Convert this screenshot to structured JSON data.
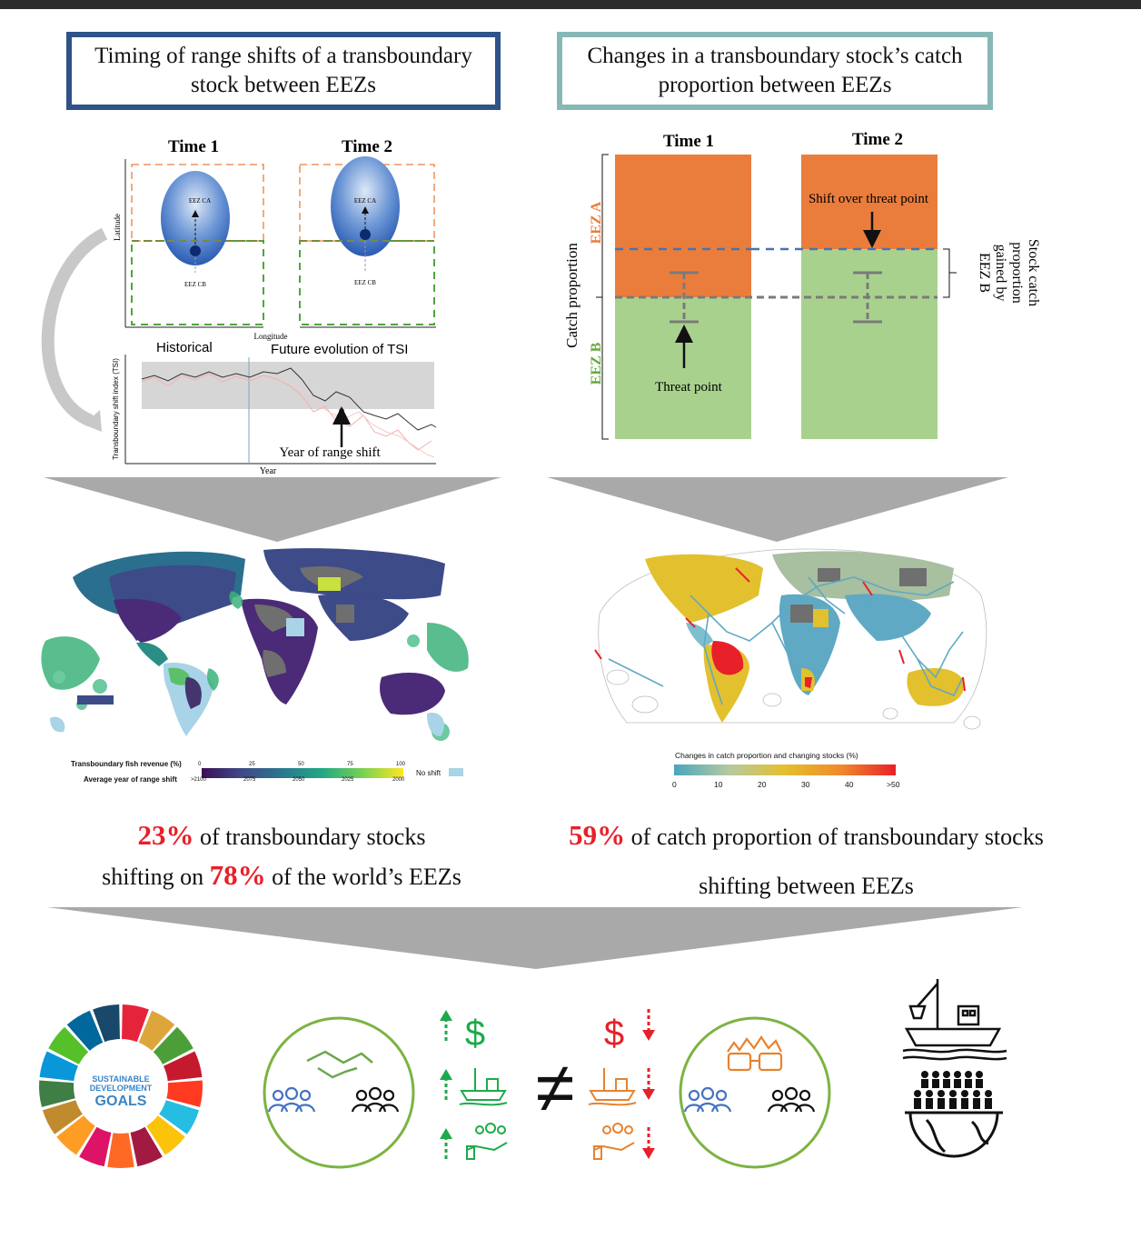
{
  "left_panel": {
    "title_line1": "Timing of range shifts of a transboundary",
    "title_line2": "stock between EEZs",
    "time1": "Time 1",
    "time2": "Time 2",
    "latitude": "Latitude",
    "longitude": "Longitude",
    "eez_ca": "EEZ CA",
    "eez_cb": "EEZ CB",
    "historical": "Historical",
    "future": "Future evolution of TSI",
    "tsi_axis": "Transboundary shift index (TSI)",
    "year_axis": "Year",
    "year_of_shift": "Year of range shift",
    "legend_revenue_label": "Transboundary fish revenue (%)",
    "legend_revenue_ticks": [
      "0",
      "25",
      "50",
      "75",
      "100"
    ],
    "legend_year_label": "Average year of range shift",
    "legend_year_ticks": [
      ">2100",
      "2075",
      "2050",
      "2025",
      "2000"
    ],
    "legend_no_shift": "No shift",
    "stat_pct1": "23%",
    "stat_text1": "of transboundary stocks",
    "stat_text2": "shifting on",
    "stat_pct2": "78%",
    "stat_text3": "of the world’s EEZs"
  },
  "right_panel": {
    "title_line1": "Changes in a transboundary stock’s catch",
    "title_line2": "proportion between EEZs",
    "time1": "Time 1",
    "time2": "Time 2",
    "eez_a": "EEZ A",
    "eez_b": "EEZ B",
    "catch_proportion": "Catch proportion",
    "shift_over": "Shift over threat point",
    "threat_point": "Threat point",
    "gained_1": "Stock catch",
    "gained_2": "proportion",
    "gained_3": "gained by",
    "gained_4": "EEZ B",
    "legend_label": "Changes in catch proportion and changing stocks (%)",
    "legend_ticks": [
      "0",
      "10",
      "20",
      "30",
      "40",
      ">50"
    ],
    "stat_pct": "59%",
    "stat_text1": "of catch proportion of transboundary stocks",
    "stat_text2": "shifting between EEZs"
  },
  "bottom": {
    "sdg_line1": "SUSTAINABLE",
    "sdg_line2": "DEVELOPMENT",
    "sdg_line3": "GOALS",
    "dollar": "$",
    "not_equal": "≠"
  },
  "colors": {
    "left_title_border": "#2f5289",
    "right_title_border": "#87b8b6",
    "eez_a_orange": "#eb7d3c",
    "eez_b_green": "#a9d18e",
    "red": "#e8202a",
    "green_arrow": "#1eaa4a",
    "ring_green": "#7cb342"
  }
}
